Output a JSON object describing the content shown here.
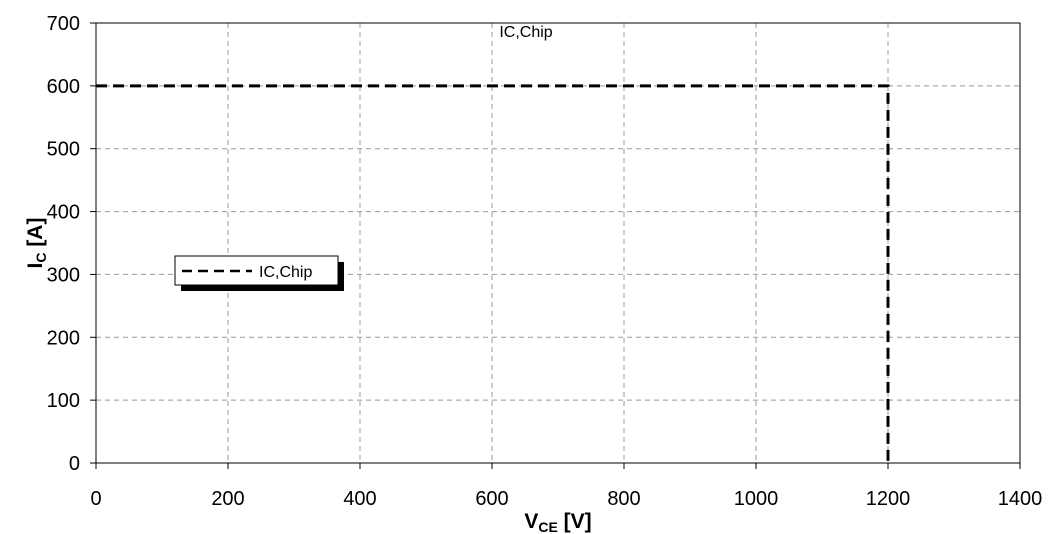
{
  "chart_data": {
    "type": "line",
    "title": "IC,Chip",
    "xlabel": {
      "main": "V",
      "sub": "CE",
      "unit": " [V]"
    },
    "ylabel": {
      "main": "I",
      "sub": "C",
      "unit": " [A]"
    },
    "xlim": [
      0,
      1400
    ],
    "ylim": [
      0,
      700
    ],
    "xticks": [
      0,
      200,
      400,
      600,
      800,
      1000,
      1200,
      1400
    ],
    "yticks": [
      0,
      100,
      200,
      300,
      400,
      500,
      600,
      700
    ],
    "grid": true,
    "legend_position": "left-middle",
    "series": [
      {
        "name": "IC,Chip",
        "style": "dashed",
        "color": "#000000",
        "x": [
          0,
          1200,
          1200
        ],
        "y": [
          600,
          600,
          0
        ]
      }
    ]
  }
}
